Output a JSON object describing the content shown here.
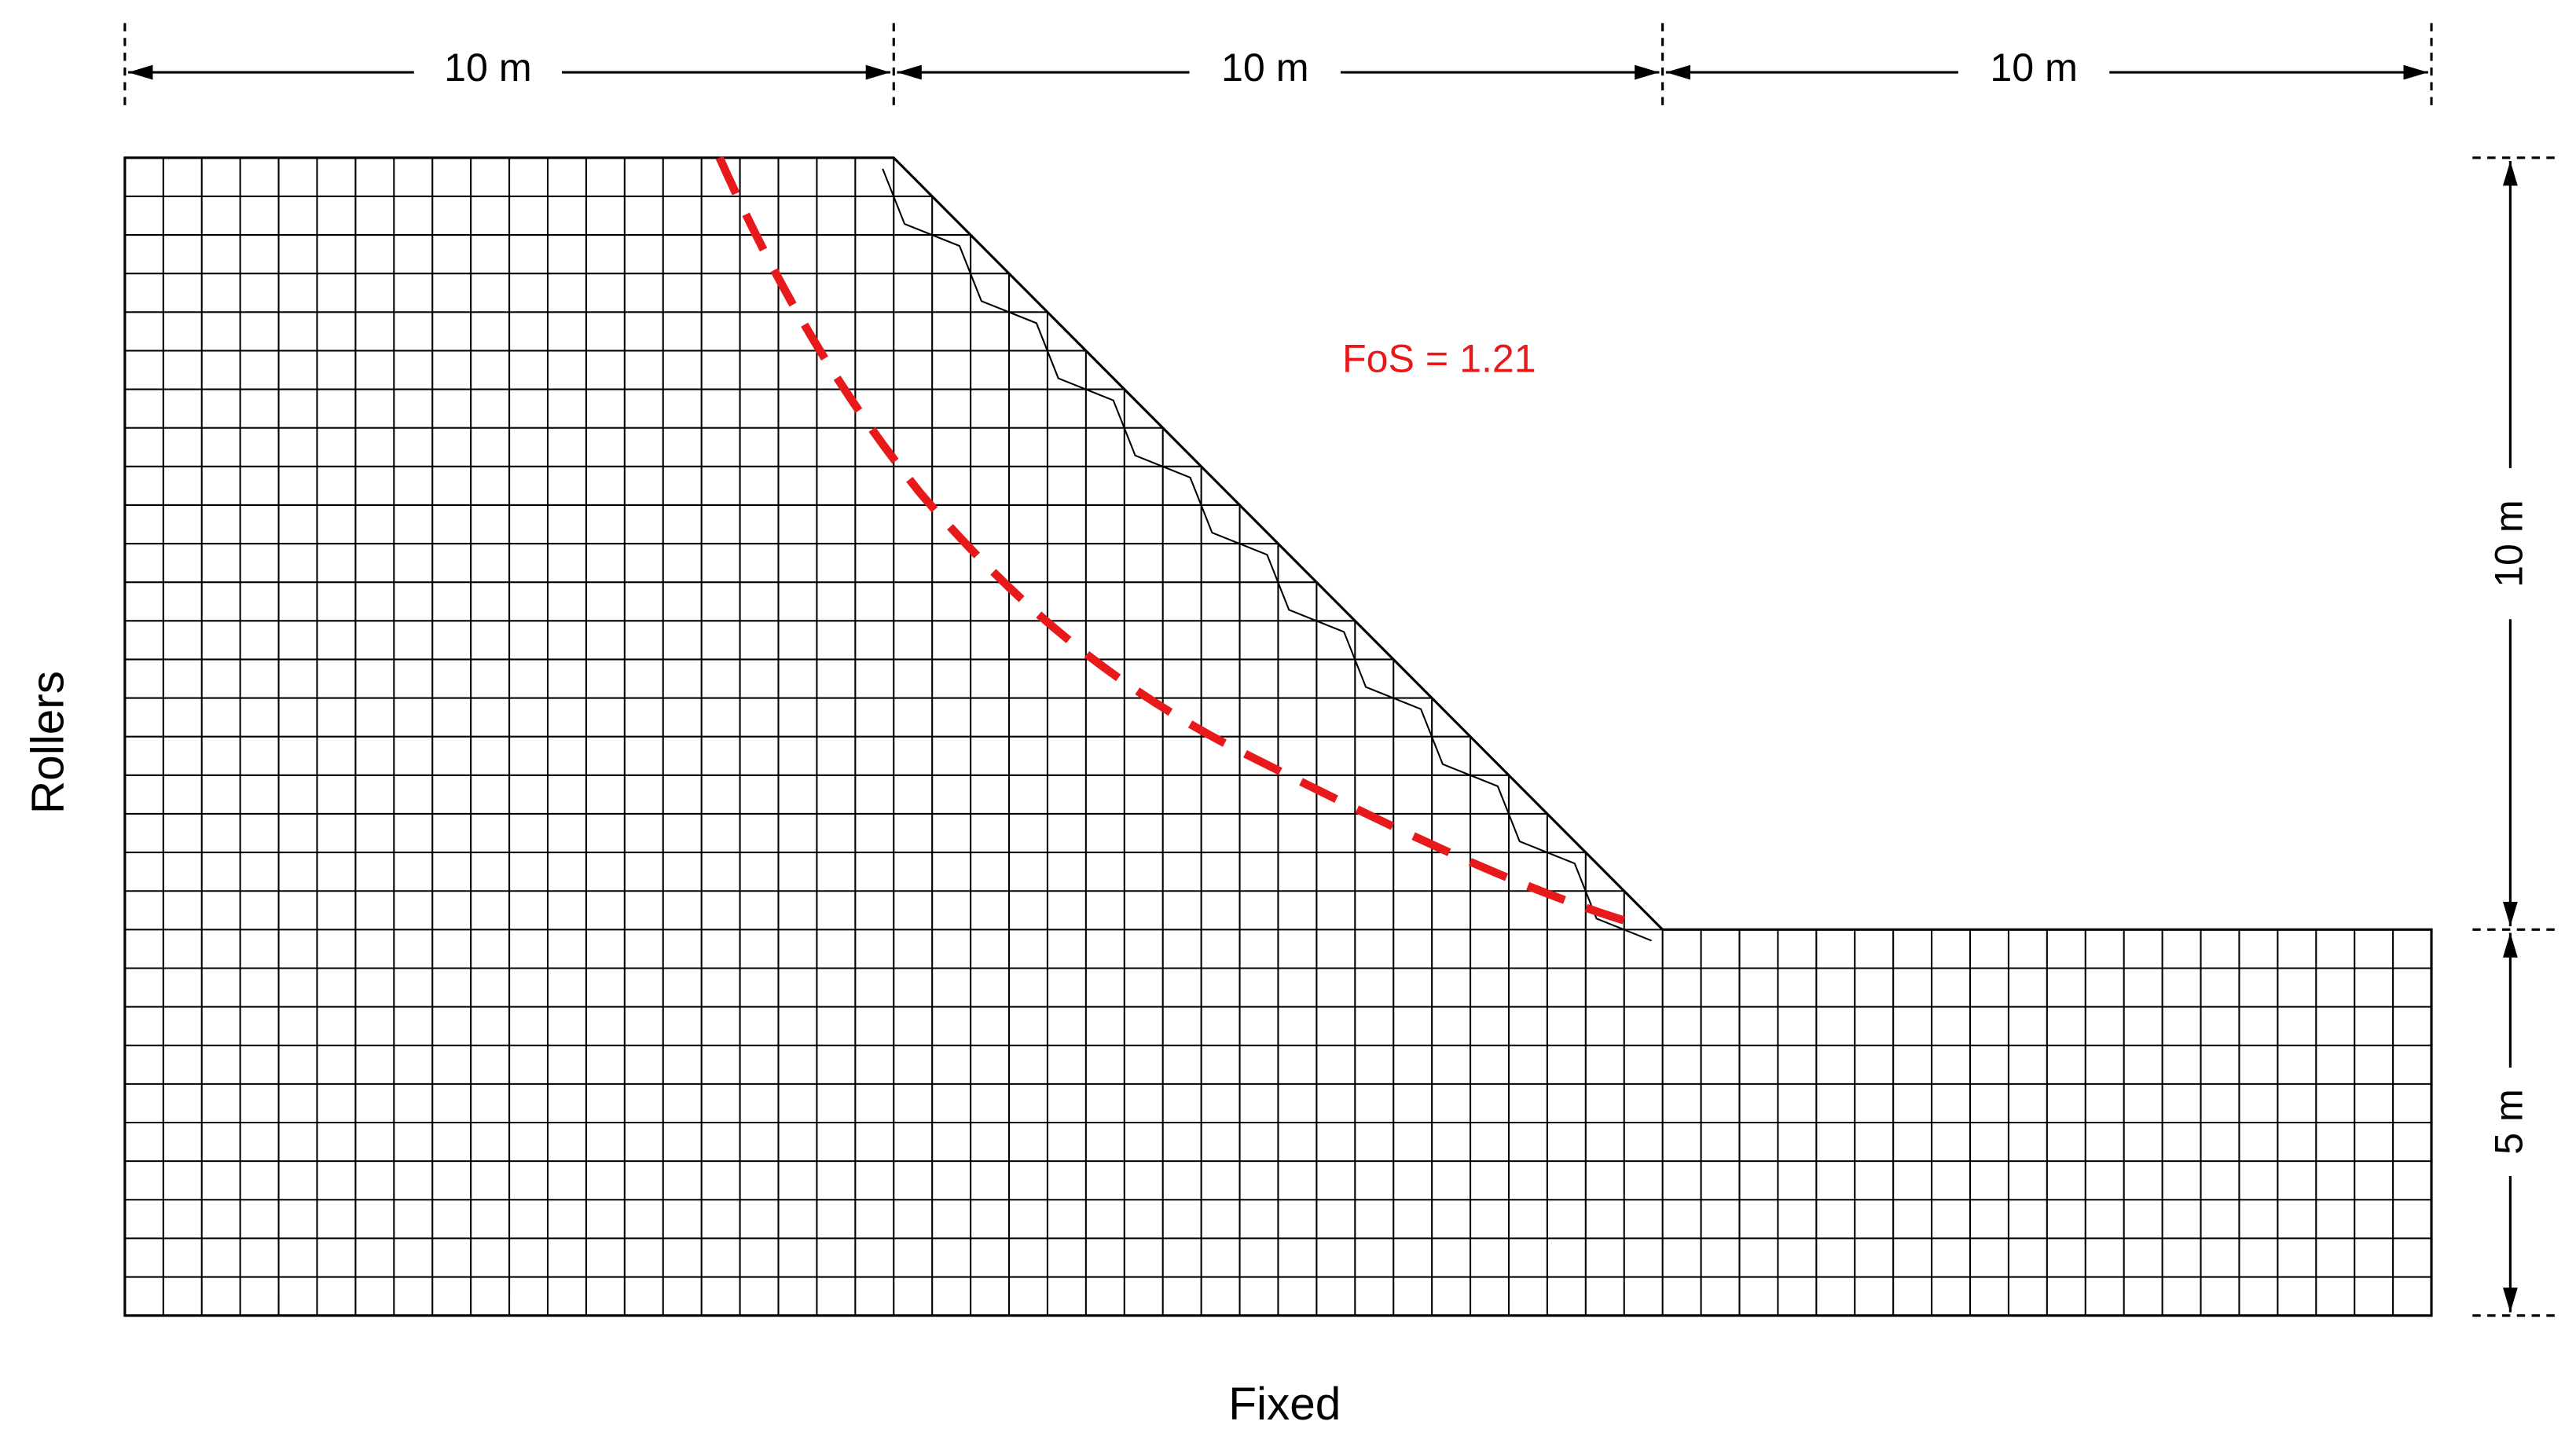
{
  "dimensions": {
    "top": [
      "10 m",
      "10 m",
      "10 m"
    ],
    "right": [
      "10 m",
      "5 m"
    ]
  },
  "annotation": "FoS = 1.21",
  "boundary": {
    "left": "Rollers",
    "bottom": "Fixed"
  }
}
